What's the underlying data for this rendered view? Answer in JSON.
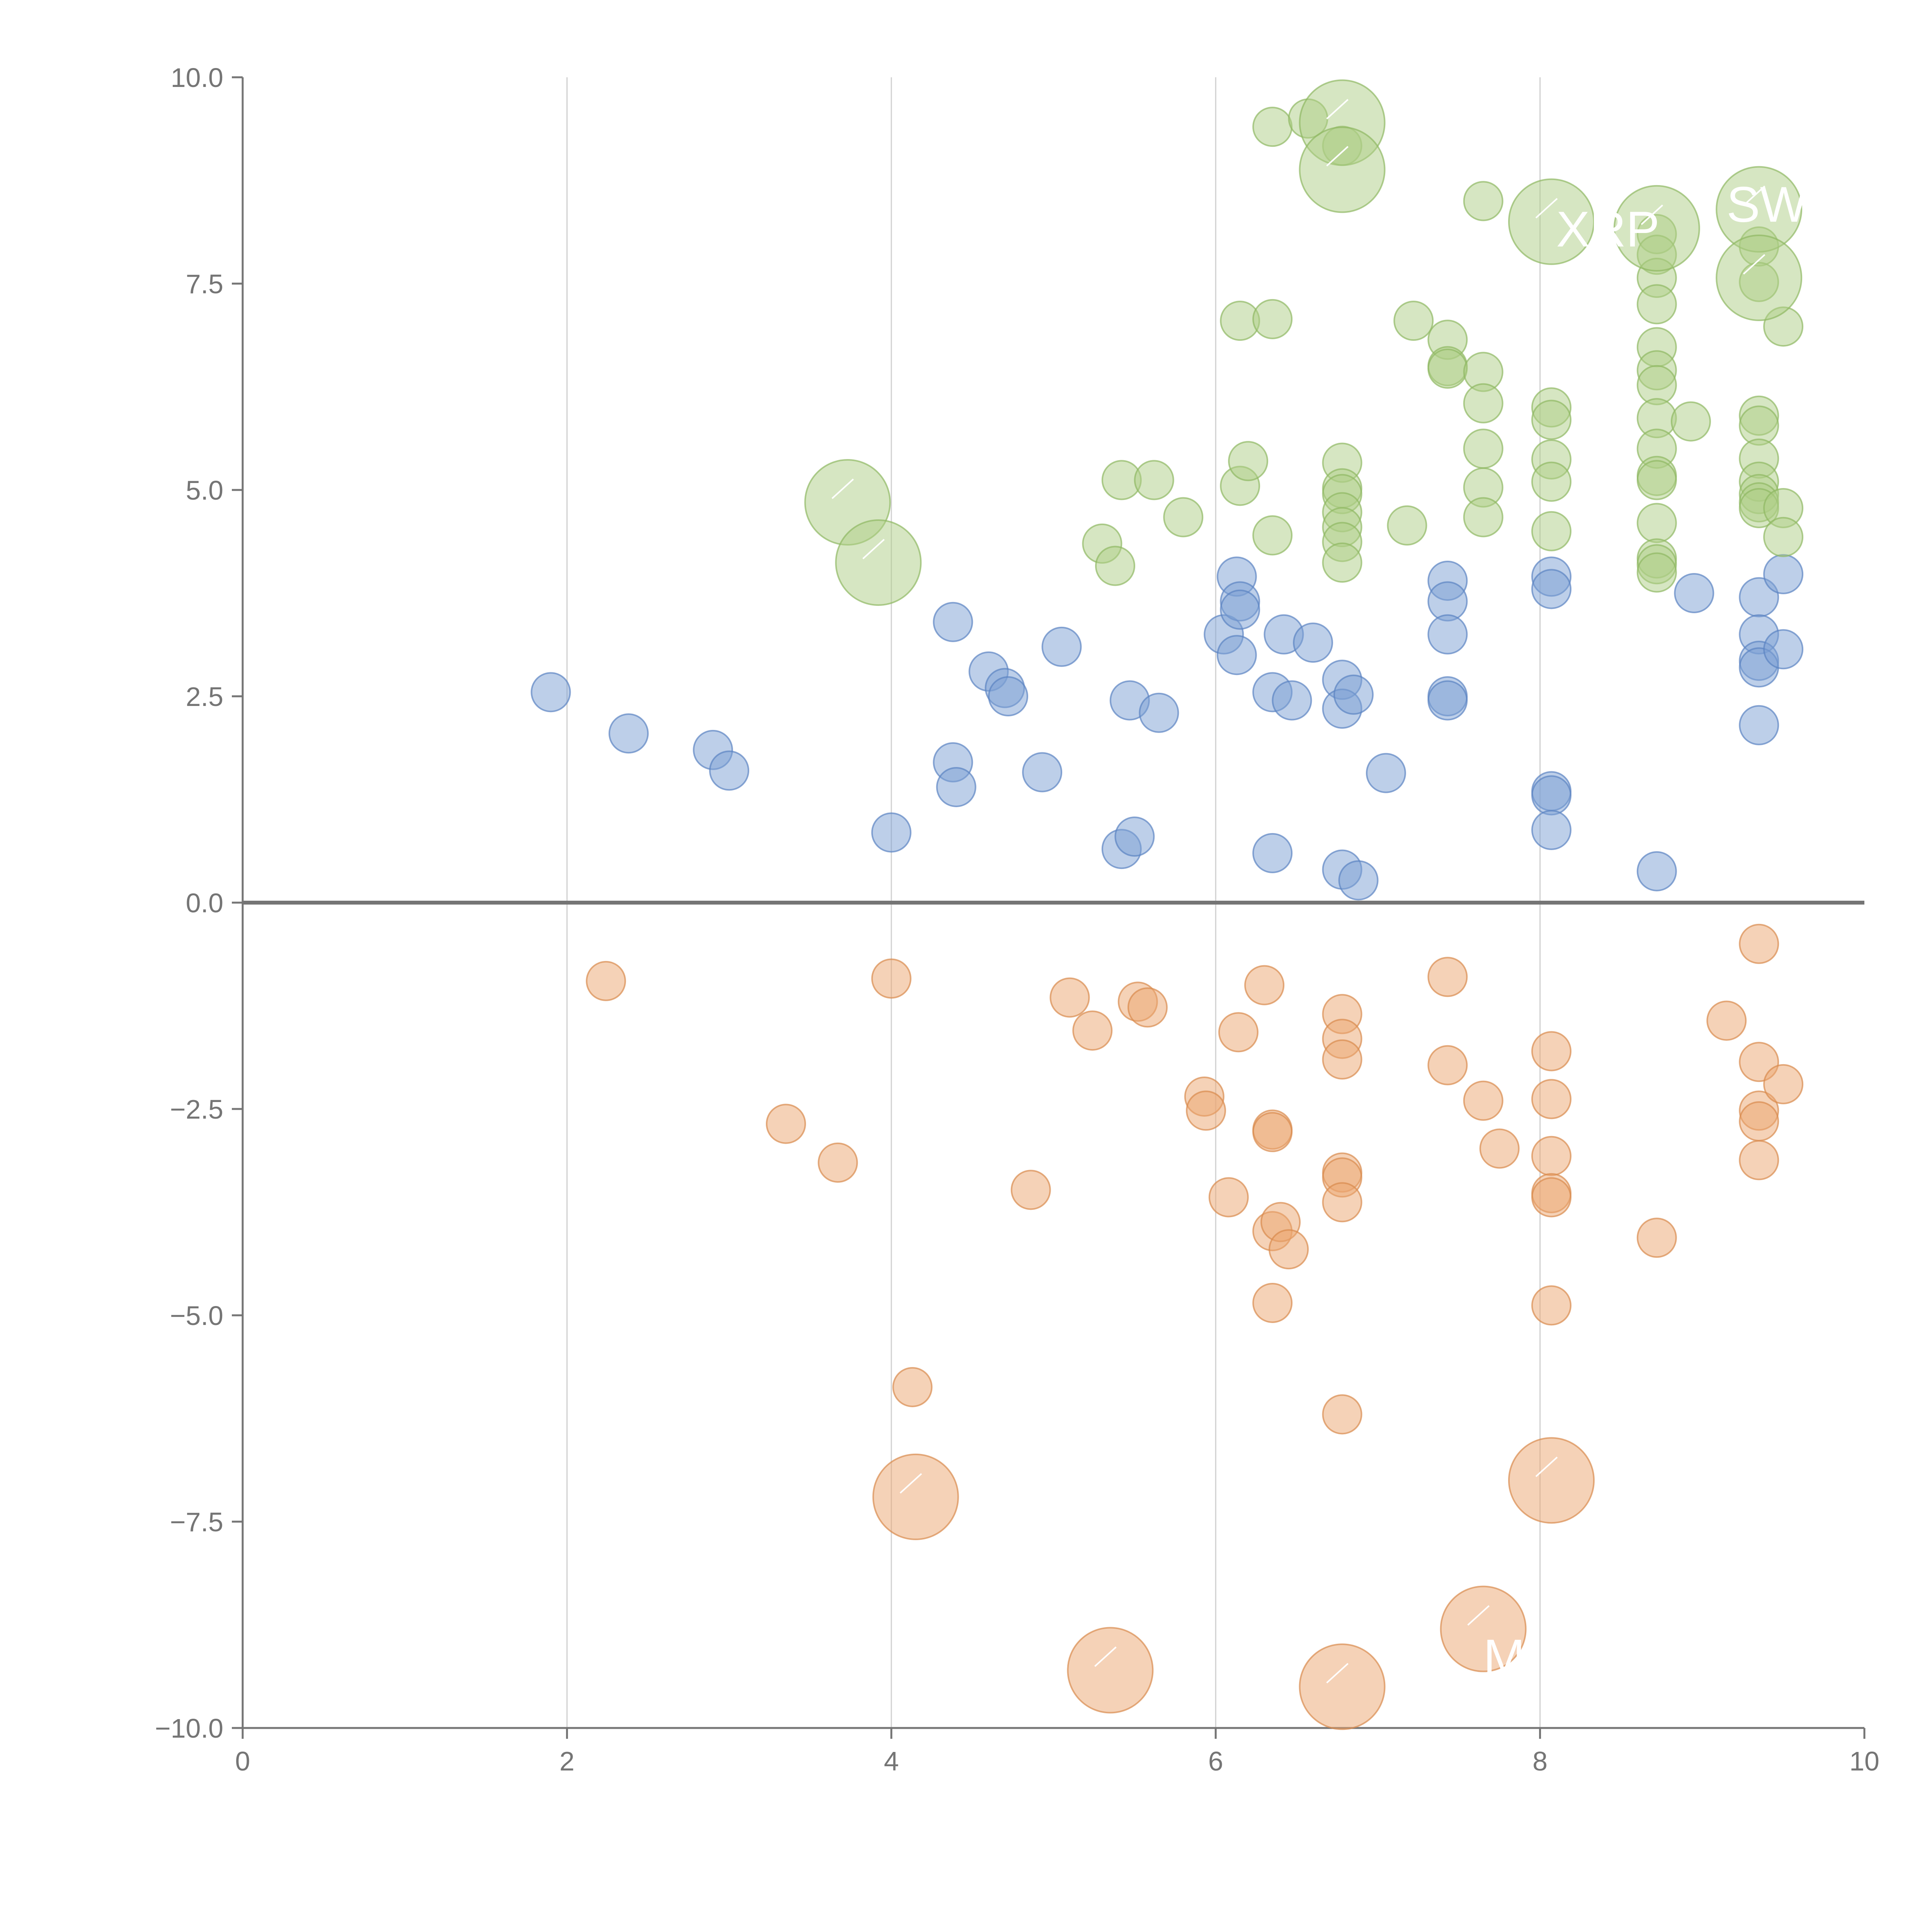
{
  "chart_data": {
    "type": "scatter",
    "title": "",
    "xlabel": "",
    "ylabel": "",
    "xlim": [
      0,
      10
    ],
    "ylim": [
      -10,
      10
    ],
    "x_ticks": [
      0,
      2,
      4,
      6,
      8,
      10
    ],
    "x_tick_labels": [
      "0",
      "2",
      "4",
      "6",
      "8",
      "10"
    ],
    "y_ticks": [
      10,
      7.5,
      5,
      2.5,
      0,
      -2.5,
      -5,
      -7.5,
      -10
    ],
    "y_tick_labels": [
      "10.0",
      "7.5",
      "5.0",
      "2.5",
      "0.0",
      "−2.5",
      "−5.0",
      "−7.5",
      "−10.0"
    ],
    "grid": "vertical",
    "zero_line": 0,
    "series": [
      {
        "name": "blue",
        "fill": "#7b9fd4",
        "stroke": "#5b83c2",
        "points": [
          [
            1.9,
            2.55
          ],
          [
            2.38,
            2.05
          ],
          [
            2.9,
            1.85
          ],
          [
            3.0,
            1.6
          ],
          [
            4.0,
            0.85
          ],
          [
            4.38,
            3.4
          ],
          [
            4.38,
            1.7
          ],
          [
            4.4,
            1.4
          ],
          [
            4.6,
            2.8
          ],
          [
            4.7,
            2.6
          ],
          [
            4.72,
            2.5
          ],
          [
            4.93,
            1.58
          ],
          [
            5.05,
            3.1
          ],
          [
            5.42,
            0.65
          ],
          [
            5.47,
            2.45
          ],
          [
            5.5,
            0.8
          ],
          [
            5.65,
            2.3
          ],
          [
            6.05,
            3.25
          ],
          [
            6.13,
            3.95
          ],
          [
            6.15,
            3.65
          ],
          [
            6.15,
            3.55
          ],
          [
            6.13,
            3.0
          ],
          [
            6.35,
            2.55
          ],
          [
            6.35,
            0.6
          ],
          [
            6.42,
            3.25
          ],
          [
            6.47,
            2.45
          ],
          [
            6.6,
            3.15
          ],
          [
            6.78,
            2.7
          ],
          [
            6.78,
            2.35
          ],
          [
            6.78,
            0.4
          ],
          [
            6.85,
            2.52
          ],
          [
            6.88,
            0.27
          ],
          [
            7.05,
            1.57
          ],
          [
            7.43,
            3.9
          ],
          [
            7.43,
            3.65
          ],
          [
            7.43,
            3.25
          ],
          [
            7.43,
            2.5
          ],
          [
            7.43,
            2.45
          ],
          [
            8.07,
            3.95
          ],
          [
            8.07,
            3.8
          ],
          [
            8.07,
            1.35
          ],
          [
            8.07,
            1.3
          ],
          [
            8.07,
            0.88
          ],
          [
            8.72,
            0.38
          ],
          [
            8.95,
            3.75
          ],
          [
            9.35,
            3.7
          ],
          [
            9.35,
            3.25
          ],
          [
            9.35,
            2.93
          ],
          [
            9.35,
            2.85
          ],
          [
            9.35,
            2.15
          ],
          [
            9.5,
            3.98
          ],
          [
            9.5,
            3.07
          ]
        ]
      },
      {
        "name": "orange",
        "fill": "#eba670",
        "stroke": "#d98a4d",
        "points": [
          [
            2.24,
            -0.95
          ],
          [
            3.35,
            -2.68
          ],
          [
            3.67,
            -3.15
          ],
          [
            4.0,
            -0.92
          ],
          [
            4.13,
            -5.87
          ],
          [
            4.86,
            -3.48
          ],
          [
            5.1,
            -1.15
          ],
          [
            5.24,
            -1.55
          ],
          [
            5.52,
            -1.2
          ],
          [
            5.58,
            -1.27
          ],
          [
            5.93,
            -2.35
          ],
          [
            5.94,
            -2.52
          ],
          [
            6.08,
            -3.57
          ],
          [
            6.14,
            -1.57
          ],
          [
            6.3,
            -1.0
          ],
          [
            6.35,
            -2.75
          ],
          [
            6.35,
            -2.78
          ],
          [
            6.35,
            -3.98
          ],
          [
            6.35,
            -4.85
          ],
          [
            6.4,
            -3.87
          ],
          [
            6.45,
            -4.2
          ],
          [
            6.78,
            -1.35
          ],
          [
            6.78,
            -1.65
          ],
          [
            6.78,
            -1.9
          ],
          [
            6.78,
            -3.27
          ],
          [
            6.78,
            -3.33
          ],
          [
            6.78,
            -3.63
          ],
          [
            6.78,
            -6.2
          ],
          [
            7.43,
            -0.9
          ],
          [
            7.43,
            -1.97
          ],
          [
            7.65,
            -2.4
          ],
          [
            7.75,
            -2.98
          ],
          [
            8.07,
            -1.8
          ],
          [
            8.07,
            -2.38
          ],
          [
            8.07,
            -3.07
          ],
          [
            8.07,
            -3.52
          ],
          [
            8.07,
            -3.57
          ],
          [
            8.07,
            -4.88
          ],
          [
            8.72,
            -4.06
          ],
          [
            9.15,
            -1.43
          ],
          [
            9.35,
            -0.5
          ],
          [
            9.35,
            -1.93
          ],
          [
            9.35,
            -2.52
          ],
          [
            9.35,
            -2.65
          ],
          [
            9.35,
            -3.12
          ],
          [
            9.5,
            -2.2
          ]
        ]
      },
      {
        "name": "green",
        "fill": "#aecd85",
        "stroke": "#8fb862",
        "points": [
          [
            5.3,
            4.35
          ],
          [
            5.38,
            4.08
          ],
          [
            5.42,
            5.12
          ],
          [
            5.62,
            5.12
          ],
          [
            5.8,
            4.67
          ],
          [
            6.15,
            7.05
          ],
          [
            6.15,
            5.05
          ],
          [
            6.2,
            5.35
          ],
          [
            6.35,
            9.4
          ],
          [
            6.35,
            7.07
          ],
          [
            6.35,
            4.45
          ],
          [
            6.57,
            9.5
          ],
          [
            6.78,
            9.17
          ],
          [
            6.78,
            5.33
          ],
          [
            6.78,
            5.02
          ],
          [
            6.78,
            4.95
          ],
          [
            6.78,
            4.73
          ],
          [
            6.78,
            4.55
          ],
          [
            6.78,
            4.37
          ],
          [
            6.78,
            4.12
          ],
          [
            7.18,
            4.57
          ],
          [
            7.22,
            7.05
          ],
          [
            7.43,
            6.82
          ],
          [
            7.43,
            6.5
          ],
          [
            7.43,
            6.47
          ],
          [
            7.65,
            8.5
          ],
          [
            7.65,
            6.43
          ],
          [
            7.65,
            6.05
          ],
          [
            7.65,
            5.5
          ],
          [
            7.65,
            5.03
          ],
          [
            7.65,
            4.67
          ],
          [
            8.07,
            6.0
          ],
          [
            8.07,
            5.85
          ],
          [
            8.07,
            5.37
          ],
          [
            8.07,
            5.1
          ],
          [
            8.07,
            4.5
          ],
          [
            8.72,
            8.1
          ],
          [
            8.72,
            7.85
          ],
          [
            8.72,
            7.57
          ],
          [
            8.72,
            7.25
          ],
          [
            8.72,
            6.73
          ],
          [
            8.72,
            6.45
          ],
          [
            8.72,
            6.27
          ],
          [
            8.72,
            5.87
          ],
          [
            8.72,
            5.5
          ],
          [
            8.72,
            5.17
          ],
          [
            8.72,
            5.12
          ],
          [
            8.72,
            4.6
          ],
          [
            8.72,
            4.17
          ],
          [
            8.72,
            4.1
          ],
          [
            8.72,
            4.0
          ],
          [
            8.93,
            5.83
          ],
          [
            9.35,
            7.95
          ],
          [
            9.35,
            7.52
          ],
          [
            9.35,
            5.9
          ],
          [
            9.35,
            5.78
          ],
          [
            9.35,
            5.38
          ],
          [
            9.35,
            5.1
          ],
          [
            9.35,
            4.95
          ],
          [
            9.35,
            4.85
          ],
          [
            9.35,
            4.78
          ],
          [
            9.5,
            6.98
          ],
          [
            9.5,
            4.78
          ],
          [
            9.5,
            4.43
          ]
        ]
      }
    ],
    "highlighted": [
      {
        "series": "green",
        "x": 3.73,
        "y": 4.85
      },
      {
        "series": "green",
        "x": 3.92,
        "y": 4.12
      },
      {
        "series": "green",
        "x": 6.78,
        "y": 9.45
      },
      {
        "series": "green",
        "x": 6.78,
        "y": 8.88
      },
      {
        "series": "green",
        "x": 8.07,
        "y": 8.25
      },
      {
        "series": "green",
        "x": 8.72,
        "y": 8.17
      },
      {
        "series": "green",
        "x": 9.35,
        "y": 8.4
      },
      {
        "series": "green",
        "x": 9.35,
        "y": 7.57
      },
      {
        "series": "orange",
        "x": 4.15,
        "y": -7.2
      },
      {
        "series": "orange",
        "x": 5.35,
        "y": -9.3
      },
      {
        "series": "orange",
        "x": 6.78,
        "y": -9.5
      },
      {
        "series": "orange",
        "x": 7.65,
        "y": -8.8
      },
      {
        "series": "orange",
        "x": 8.07,
        "y": -7.0
      }
    ],
    "annotations": [
      "XRP",
      "SW",
      "M"
    ]
  }
}
